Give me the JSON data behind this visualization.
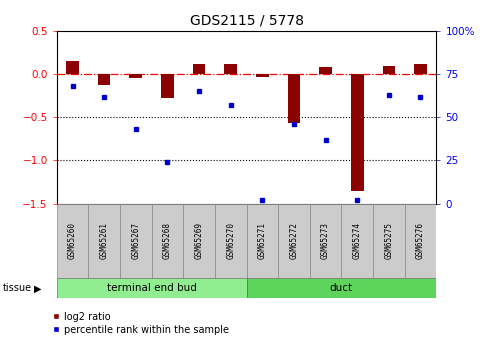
{
  "title": "GDS2115 / 5778",
  "samples": [
    "GSM65260",
    "GSM65261",
    "GSM65267",
    "GSM65268",
    "GSM65269",
    "GSM65270",
    "GSM65271",
    "GSM65272",
    "GSM65273",
    "GSM65274",
    "GSM65275",
    "GSM65276"
  ],
  "log2_ratio": [
    0.15,
    -0.12,
    -0.04,
    -0.28,
    0.12,
    0.12,
    -0.03,
    -0.57,
    0.08,
    -1.35,
    0.1,
    0.12
  ],
  "percentile": [
    68,
    62,
    43,
    24,
    65,
    57,
    2,
    46,
    37,
    2,
    63,
    62
  ],
  "tissue_groups": [
    {
      "label": "terminal end bud",
      "start": 0,
      "end": 6,
      "color": "#90EE90"
    },
    {
      "label": "duct",
      "start": 6,
      "end": 12,
      "color": "#5DD55D"
    }
  ],
  "bar_color": "#8B0000",
  "dot_color": "#0000CD",
  "ylim_left": [
    -1.5,
    0.5
  ],
  "ylim_right": [
    0,
    100
  ],
  "yticks_left": [
    -1.5,
    -1.0,
    -0.5,
    0.0,
    0.5
  ],
  "yticks_right": [
    0,
    25,
    50,
    75,
    100
  ],
  "hline_dotted": [
    -0.5,
    -1.0
  ],
  "legend_entries": [
    "log2 ratio",
    "percentile rank within the sample"
  ],
  "tissue_label": "tissue",
  "tissue_arrow": "▶"
}
